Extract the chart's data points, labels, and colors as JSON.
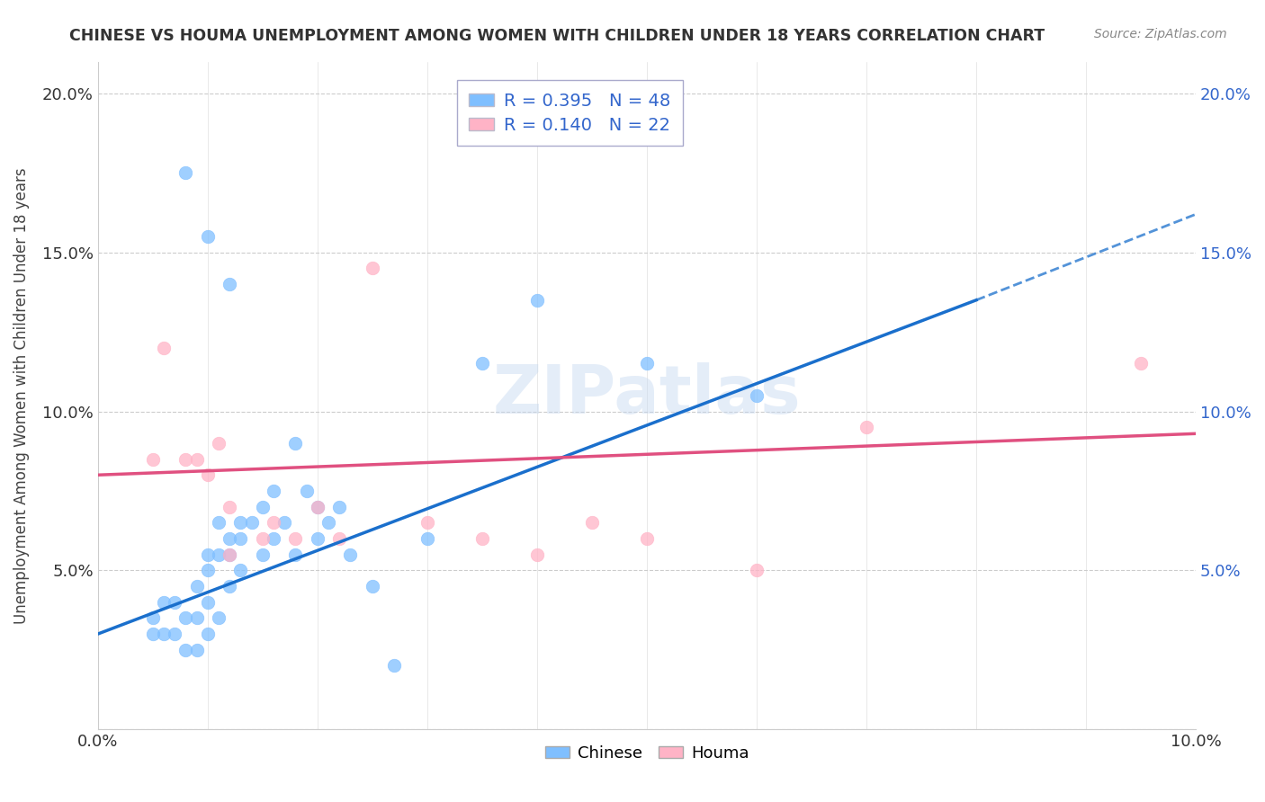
{
  "title": "CHINESE VS HOUMA UNEMPLOYMENT AMONG WOMEN WITH CHILDREN UNDER 18 YEARS CORRELATION CHART",
  "source": "Source: ZipAtlas.com",
  "ylabel": "Unemployment Among Women with Children Under 18 years",
  "xlabel": "",
  "xlim": [
    0.0,
    0.1
  ],
  "ylim": [
    0.0,
    0.21
  ],
  "ytick_vals": [
    0.0,
    0.05,
    0.1,
    0.15,
    0.2
  ],
  "xtick_vals": [
    0.0,
    0.01,
    0.02,
    0.03,
    0.04,
    0.05,
    0.06,
    0.07,
    0.08,
    0.09,
    0.1
  ],
  "chinese_color": "#7fbfff",
  "houma_color": "#ffb3c6",
  "chinese_line_color": "#1a6fcc",
  "houma_line_color": "#e05080",
  "watermark_text": "ZIPatlas",
  "legend_label_chinese": "R = 0.395   N = 48",
  "legend_label_houma": "R = 0.140   N = 22",
  "bottom_legend_chinese": "Chinese",
  "bottom_legend_houma": "Houma",
  "chinese_line_x0": 0.0,
  "chinese_line_y0": 0.03,
  "chinese_line_x1": 0.08,
  "chinese_line_y1": 0.135,
  "chinese_line_dash_x0": 0.08,
  "chinese_line_dash_y0": 0.135,
  "chinese_line_dash_x1": 0.1,
  "chinese_line_dash_y1": 0.162,
  "houma_line_x0": 0.0,
  "houma_line_y0": 0.08,
  "houma_line_x1": 0.1,
  "houma_line_y1": 0.093,
  "chinese_scatter_x": [
    0.005,
    0.005,
    0.006,
    0.006,
    0.007,
    0.007,
    0.008,
    0.008,
    0.009,
    0.009,
    0.009,
    0.01,
    0.01,
    0.01,
    0.01,
    0.011,
    0.011,
    0.011,
    0.012,
    0.012,
    0.012,
    0.013,
    0.013,
    0.013,
    0.014,
    0.015,
    0.015,
    0.016,
    0.016,
    0.017,
    0.018,
    0.019,
    0.02,
    0.02,
    0.021,
    0.022,
    0.023,
    0.025,
    0.027,
    0.03,
    0.035,
    0.04,
    0.05,
    0.06,
    0.008,
    0.01,
    0.012,
    0.018
  ],
  "chinese_scatter_y": [
    0.03,
    0.035,
    0.03,
    0.04,
    0.03,
    0.04,
    0.025,
    0.035,
    0.025,
    0.035,
    0.045,
    0.03,
    0.04,
    0.05,
    0.055,
    0.035,
    0.055,
    0.065,
    0.045,
    0.055,
    0.06,
    0.05,
    0.06,
    0.065,
    0.065,
    0.055,
    0.07,
    0.06,
    0.075,
    0.065,
    0.055,
    0.075,
    0.06,
    0.07,
    0.065,
    0.07,
    0.055,
    0.045,
    0.02,
    0.06,
    0.115,
    0.135,
    0.115,
    0.105,
    0.175,
    0.155,
    0.14,
    0.09
  ],
  "houma_scatter_x": [
    0.005,
    0.006,
    0.008,
    0.009,
    0.01,
    0.011,
    0.012,
    0.012,
    0.015,
    0.016,
    0.018,
    0.02,
    0.022,
    0.025,
    0.03,
    0.035,
    0.04,
    0.045,
    0.05,
    0.06,
    0.07,
    0.095
  ],
  "houma_scatter_y": [
    0.085,
    0.12,
    0.085,
    0.085,
    0.08,
    0.09,
    0.07,
    0.055,
    0.06,
    0.065,
    0.06,
    0.07,
    0.06,
    0.145,
    0.065,
    0.06,
    0.055,
    0.065,
    0.06,
    0.05,
    0.095,
    0.115
  ]
}
